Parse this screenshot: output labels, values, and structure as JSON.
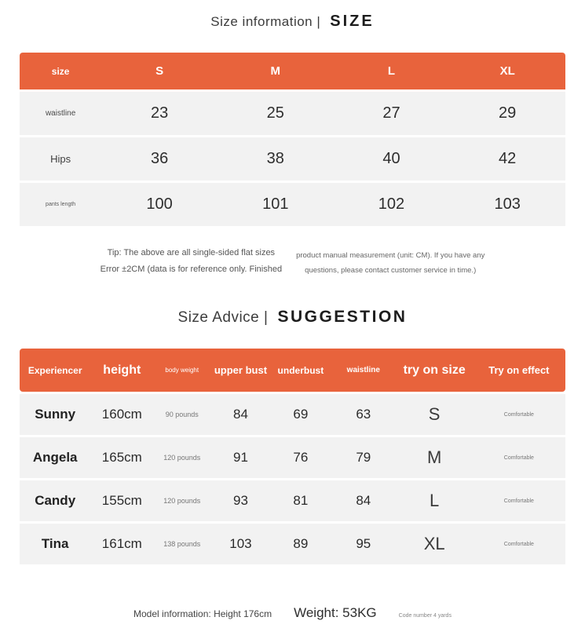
{
  "colors": {
    "accent": "#e8633c",
    "row_bg": "#f2f2f2"
  },
  "size_section": {
    "title": {
      "left": "Size information |",
      "right": "SIZE"
    },
    "table": {
      "header": [
        "size",
        "S",
        "M",
        "L",
        "XL"
      ],
      "rows": [
        [
          "waistline",
          "23",
          "25",
          "27",
          "29"
        ],
        [
          "Hips",
          "36",
          "38",
          "40",
          "42"
        ],
        [
          "pants length",
          "100",
          "101",
          "102",
          "103"
        ]
      ]
    },
    "tip": {
      "left": [
        "Tip: The above are all single-sided flat sizes",
        "Error ±2CM (data is for reference only. Finished"
      ],
      "right": [
        "product manual measurement (unit: CM). If you have any",
        "questions, please contact customer service in time.)"
      ]
    }
  },
  "advice_section": {
    "title": {
      "left": "Size Advice |",
      "right": "SUGGESTION"
    },
    "table": {
      "header": [
        "Experiencer",
        "height",
        "body weight",
        "upper bust",
        "underbust",
        "waistline",
        "try on size",
        "Try on effect"
      ],
      "rows": [
        [
          "Sunny",
          "160cm",
          "90 pounds",
          "84",
          "69",
          "63",
          "S",
          "Comfortable"
        ],
        [
          "Angela",
          "165cm",
          "120 pounds",
          "91",
          "76",
          "79",
          "M",
          "Comfortable"
        ],
        [
          "Candy",
          "155cm",
          "120 pounds",
          "93",
          "81",
          "84",
          "L",
          "Comfortable"
        ],
        [
          "Tina",
          "161cm",
          "138 pounds",
          "103",
          "89",
          "95",
          "XL",
          "Comfortable"
        ]
      ]
    }
  },
  "footer": {
    "model_info": "Model information: Height 176cm",
    "weight": "Weight: 53KG",
    "code": "Code number 4 yards"
  }
}
